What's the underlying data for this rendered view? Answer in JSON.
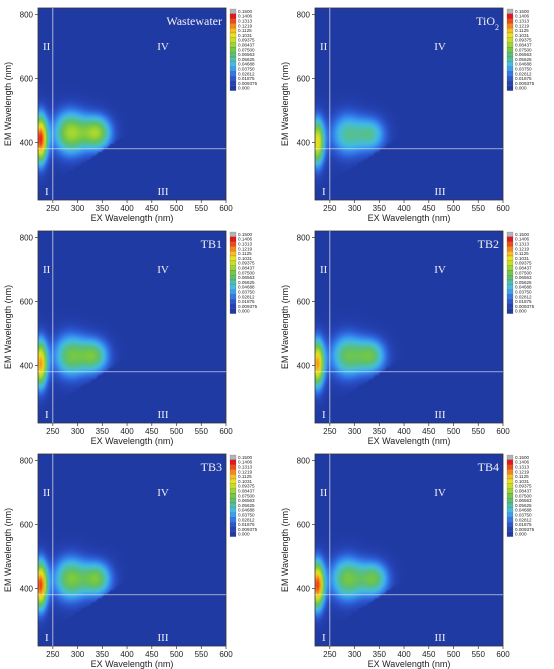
{
  "colorbar": {
    "levels": [
      "0.1500",
      "0.1406",
      "0.1313",
      "0.1219",
      "0.1125",
      "0.1031",
      "0.09375",
      "0.08437",
      "0.07500",
      "0.06563",
      "0.05625",
      "0.04688",
      "0.03750",
      "0.02812",
      "0.01875",
      "0.009375",
      "0.000"
    ],
    "colors": [
      "#b4b4b4",
      "#e6141e",
      "#f24a14",
      "#f7861a",
      "#f9be1e",
      "#eae21e",
      "#c6df26",
      "#9bd434",
      "#73c845",
      "#5cbf72",
      "#4fc0a8",
      "#43bce0",
      "#3b9ef0",
      "#3278e6",
      "#2b57cf",
      "#2543b3",
      "#203aa3"
    ]
  },
  "chart_data": [
    {
      "type": "heatmap",
      "title": "Wastewater",
      "xlabel": "EX Wavelength (nm)",
      "ylabel": "EM Wavelength (nm)",
      "xlim": [
        220,
        600
      ],
      "ylim": [
        220,
        820
      ],
      "xticks": [
        "250",
        "300",
        "350",
        "400",
        "450",
        "500",
        "550",
        "600"
      ],
      "yticks": [
        "400",
        "600",
        "800"
      ],
      "regions": [
        "I",
        "II",
        "III",
        "IV"
      ],
      "boundary_ex": 250,
      "boundary_em": 380,
      "peaks": [
        {
          "ex": 225,
          "em": 410,
          "intensity": 0.145
        },
        {
          "ex": 285,
          "em": 430,
          "intensity": 0.09
        },
        {
          "ex": 340,
          "em": 430,
          "intensity": 0.085
        }
      ]
    },
    {
      "type": "heatmap",
      "title": "TiO",
      "title_sub": "2",
      "xlabel": "EX Wavelength (nm)",
      "ylabel": "EM Wavelength (nm)",
      "xlim": [
        220,
        600
      ],
      "ylim": [
        220,
        820
      ],
      "xticks": [
        "250",
        "300",
        "350",
        "400",
        "450",
        "500",
        "550",
        "600"
      ],
      "yticks": [
        "400",
        "600",
        "800"
      ],
      "regions": [
        "I",
        "II",
        "III",
        "IV"
      ],
      "boundary_ex": 250,
      "boundary_em": 380,
      "peaks": [
        {
          "ex": 225,
          "em": 400,
          "intensity": 0.11
        },
        {
          "ex": 285,
          "em": 425,
          "intensity": 0.06
        },
        {
          "ex": 335,
          "em": 425,
          "intensity": 0.055
        }
      ]
    },
    {
      "type": "heatmap",
      "title": "TB1",
      "xlabel": "EX Wavelength (nm)",
      "ylabel": "EM Wavelength (nm)",
      "xlim": [
        220,
        600
      ],
      "ylim": [
        220,
        820
      ],
      "xticks": [
        "250",
        "300",
        "350",
        "400",
        "450",
        "500",
        "550",
        "600"
      ],
      "yticks": [
        "400",
        "600",
        "800"
      ],
      "regions": [
        "I",
        "II",
        "III",
        "IV"
      ],
      "boundary_ex": 250,
      "boundary_em": 380,
      "peaks": [
        {
          "ex": 225,
          "em": 405,
          "intensity": 0.125
        },
        {
          "ex": 285,
          "em": 430,
          "intensity": 0.075
        },
        {
          "ex": 335,
          "em": 430,
          "intensity": 0.07
        }
      ]
    },
    {
      "type": "heatmap",
      "title": "TB2",
      "xlabel": "EX Wavelength (nm)",
      "ylabel": "EM Wavelength (nm)",
      "xlim": [
        220,
        600
      ],
      "ylim": [
        220,
        820
      ],
      "xticks": [
        "250",
        "300",
        "350",
        "400",
        "450",
        "500",
        "550",
        "600"
      ],
      "yticks": [
        "400",
        "600",
        "800"
      ],
      "regions": [
        "I",
        "II",
        "III",
        "IV"
      ],
      "boundary_ex": 250,
      "boundary_em": 380,
      "peaks": [
        {
          "ex": 225,
          "em": 405,
          "intensity": 0.125
        },
        {
          "ex": 285,
          "em": 430,
          "intensity": 0.072
        },
        {
          "ex": 335,
          "em": 430,
          "intensity": 0.068
        }
      ]
    },
    {
      "type": "heatmap",
      "title": "TB3",
      "xlabel": "EX Wavelength (nm)",
      "ylabel": "EM Wavelength (nm)",
      "xlim": [
        220,
        600
      ],
      "ylim": [
        220,
        820
      ],
      "xticks": [
        "250",
        "300",
        "350",
        "400",
        "450",
        "500",
        "550",
        "600"
      ],
      "yticks": [
        "400",
        "600",
        "800"
      ],
      "regions": [
        "I",
        "II",
        "III",
        "IV"
      ],
      "boundary_ex": 250,
      "boundary_em": 380,
      "peaks": [
        {
          "ex": 225,
          "em": 410,
          "intensity": 0.14
        },
        {
          "ex": 285,
          "em": 430,
          "intensity": 0.08
        },
        {
          "ex": 340,
          "em": 430,
          "intensity": 0.075
        }
      ]
    },
    {
      "type": "heatmap",
      "title": "TB4",
      "xlabel": "EX Wavelength (nm)",
      "ylabel": "EM Wavelength (nm)",
      "xlim": [
        220,
        600
      ],
      "ylim": [
        220,
        820
      ],
      "xticks": [
        "250",
        "300",
        "350",
        "400",
        "450",
        "500",
        "550",
        "600"
      ],
      "yticks": [
        "400",
        "600",
        "800"
      ],
      "regions": [
        "I",
        "II",
        "III",
        "IV"
      ],
      "boundary_ex": 250,
      "boundary_em": 380,
      "peaks": [
        {
          "ex": 225,
          "em": 410,
          "intensity": 0.14
        },
        {
          "ex": 285,
          "em": 430,
          "intensity": 0.078
        },
        {
          "ex": 340,
          "em": 430,
          "intensity": 0.072
        }
      ]
    }
  ]
}
